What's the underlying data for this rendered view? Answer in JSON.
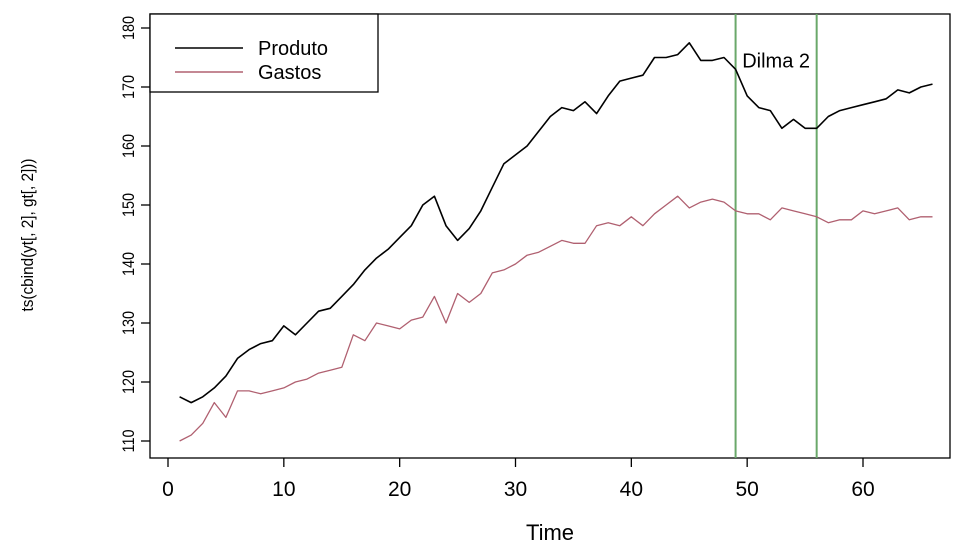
{
  "chart_data": {
    "type": "line",
    "xlabel": "Time",
    "ylabel": "ts(cbind(yt[, 2], gt[, 2]))",
    "xlim": [
      0,
      66
    ],
    "ylim": [
      108,
      180
    ],
    "x_ticks": [
      0,
      10,
      20,
      30,
      40,
      50,
      60
    ],
    "y_ticks": [
      110,
      120,
      130,
      140,
      150,
      160,
      170,
      180
    ],
    "grid": false,
    "legend": {
      "position": "top-left",
      "entries": [
        "Produto",
        "Gastos"
      ]
    },
    "x": [
      1,
      2,
      3,
      4,
      5,
      6,
      7,
      8,
      9,
      10,
      11,
      12,
      13,
      14,
      15,
      16,
      17,
      18,
      19,
      20,
      21,
      22,
      23,
      24,
      25,
      26,
      27,
      28,
      29,
      30,
      31,
      32,
      33,
      34,
      35,
      36,
      37,
      38,
      39,
      40,
      41,
      42,
      43,
      44,
      45,
      46,
      47,
      48,
      49,
      50,
      51,
      52,
      53,
      54,
      55,
      56,
      57,
      58,
      59,
      60,
      61,
      62,
      63,
      64,
      65,
      66
    ],
    "series": [
      {
        "name": "Produto",
        "color": "#000000",
        "values": [
          117.5,
          116.5,
          117.5,
          119,
          121,
          124,
          125.5,
          126.5,
          127,
          129.5,
          128,
          130,
          132,
          132.5,
          134.5,
          136.5,
          139,
          141,
          142.5,
          144.5,
          146.5,
          150,
          151.5,
          146.5,
          144,
          146,
          149,
          153,
          157,
          158.5,
          160,
          162.5,
          165,
          166.5,
          166,
          167.5,
          165.5,
          168.5,
          171,
          171.5,
          172,
          175,
          175,
          175.5,
          177.5,
          174.5,
          174.5,
          175,
          173,
          168.5,
          166.5,
          166,
          163,
          164.5,
          163,
          163,
          165,
          166,
          166.5,
          167,
          167.5,
          168,
          169.5,
          169,
          170,
          170.5
        ]
      },
      {
        "name": "Gastos",
        "color": "#b06070",
        "values": [
          110,
          111,
          113,
          116.5,
          114,
          118.5,
          118.5,
          118,
          118.5,
          119,
          120,
          120.5,
          121.5,
          122,
          122.5,
          128,
          127,
          130,
          129.5,
          129,
          130.5,
          131,
          134.5,
          130,
          135,
          133.5,
          135,
          138.5,
          139,
          140,
          141.5,
          142,
          143,
          144,
          143.5,
          143.5,
          146.5,
          147,
          146.5,
          148,
          146.5,
          148.5,
          150,
          151.5,
          149.5,
          150.5,
          151,
          150.5,
          149,
          148.5,
          148.5,
          147.5,
          149.5,
          149,
          148.5,
          148,
          147,
          147.5,
          147.5,
          149,
          148.5,
          149,
          149.5,
          147.5,
          148,
          148
        ]
      }
    ],
    "vlines": {
      "color": "#6aa86a",
      "x": [
        49,
        56
      ]
    },
    "annotations": [
      {
        "text": "Dilma 2",
        "x": 52.5,
        "y": 174.5
      }
    ]
  }
}
